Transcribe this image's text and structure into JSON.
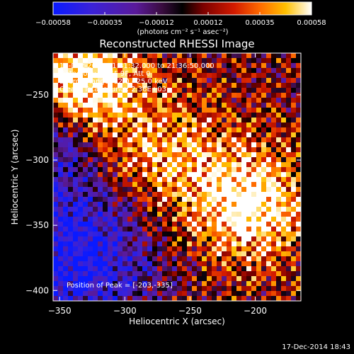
{
  "chart_data": {
    "type": "heatmap",
    "title": "Reconstructed RHESSI Image",
    "xlabel": "Heliocentric X (arcsec)",
    "ylabel": "Heliocentric Y (arcsec)",
    "xlim": [
      -355,
      -165
    ],
    "ylim": [
      -408,
      -218
    ],
    "xticks": [
      -350,
      -300,
      -250,
      -200
    ],
    "yticks": [
      -250,
      -300,
      -350,
      -400
    ],
    "colorbar": {
      "label": "(photons cm⁻² s⁻¹ asec⁻²)",
      "range": [
        -0.00058,
        0.00058
      ],
      "ticks": [
        "-0.00058",
        "-0.00035",
        "-0.00012",
        "0.00012",
        "0.00035",
        "0.00058"
      ]
    },
    "annotations": [
      "16-Dec-2014 21:31:32.000 to 21:36:50.000",
      "Detectors: 3F 6F 9F, Att 0",
      "Energy Range: 12.0 - 25.0 keV",
      "Clean.  Total counts: 2.36E+03"
    ],
    "peak_label": "Position of Peak = [-203,-335]",
    "peak": [
      -203,
      -335
    ],
    "grid": false
  },
  "footer": {
    "timestamp": "17-Dec-2014 18:43"
  }
}
